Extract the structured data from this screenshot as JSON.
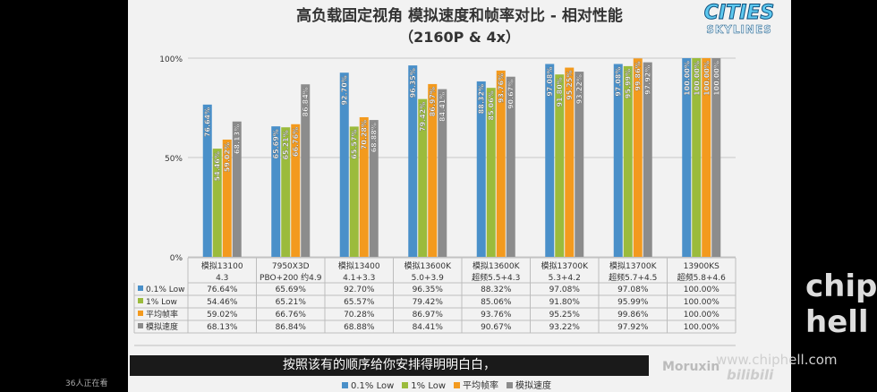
{
  "chart_data": {
    "type": "bar",
    "title": "高负载固定视角 模拟速度和帧率对比 - 相对性能",
    "subtitle": "（2160P & 4x）",
    "categories": [
      {
        "line1": "模拟13100",
        "line2": "4.3"
      },
      {
        "line1": "7950X3D",
        "line2": "PBO+200 约4.9"
      },
      {
        "line1": "模拟13400",
        "line2": "4.1+3.3"
      },
      {
        "line1": "模拟13600K",
        "line2": "5.0+3.9"
      },
      {
        "line1": "模拟13600K",
        "line2": "超频5.5+4.3"
      },
      {
        "line1": "模拟13700K",
        "line2": "5.3+4.2"
      },
      {
        "line1": "模拟13700K",
        "line2": "超频5.7+4.5"
      },
      {
        "line1": "13900KS",
        "line2": "超频5.8+4.6"
      }
    ],
    "series": [
      {
        "name": "0.1% Low",
        "color": "#4a90c9",
        "values": [
          76.64,
          65.69,
          92.7,
          96.35,
          88.32,
          97.08,
          97.08,
          100.0
        ],
        "labels": [
          "76.64%",
          "65.69%",
          "92.70%",
          "96.35%",
          "88.32%",
          "97.08%",
          "97.08%",
          "100.00%"
        ]
      },
      {
        "name": "1% Low",
        "color": "#9bbb3c",
        "values": [
          54.46,
          65.21,
          65.57,
          79.42,
          85.06,
          91.8,
          95.99,
          100.0
        ],
        "labels": [
          "54.46%",
          "65.21%",
          "65.57%",
          "79.42%",
          "85.06%",
          "91.80%",
          "95.99%",
          "100.00%"
        ]
      },
      {
        "name": "平均帧率",
        "color": "#f39a1e",
        "values": [
          59.02,
          66.76,
          70.28,
          86.97,
          93.76,
          95.25,
          99.86,
          100.0
        ],
        "labels": [
          "59.02%",
          "66.76%",
          "70.28%",
          "86.97%",
          "93.76%",
          "95.25%",
          "99.86%",
          "100.00%"
        ]
      },
      {
        "name": "模拟速度",
        "color": "#8c8c8c",
        "values": [
          68.13,
          86.84,
          68.88,
          84.41,
          90.67,
          93.22,
          97.92,
          100.0
        ],
        "labels": [
          "68.13%",
          "86.84%",
          "68.88%",
          "84.41%",
          "90.67%",
          "93.22%",
          "97.92%",
          "100.00%"
        ]
      }
    ],
    "ylim": [
      0,
      100
    ],
    "yticks": [
      "0%",
      "50%",
      "100%"
    ],
    "grid": true,
    "legend_position": "bottom",
    "data_table": true
  },
  "logo": {
    "line1": "CITIES",
    "line2": "SKYLINES"
  },
  "video": {
    "caption": "按照该有的顺序给你安排得明明白白，",
    "uploader": "Moruxin",
    "site": "www.chiphell.com",
    "platform": "bilibili",
    "watermark_logo": "chip hell",
    "viewers": "36人正在看"
  }
}
